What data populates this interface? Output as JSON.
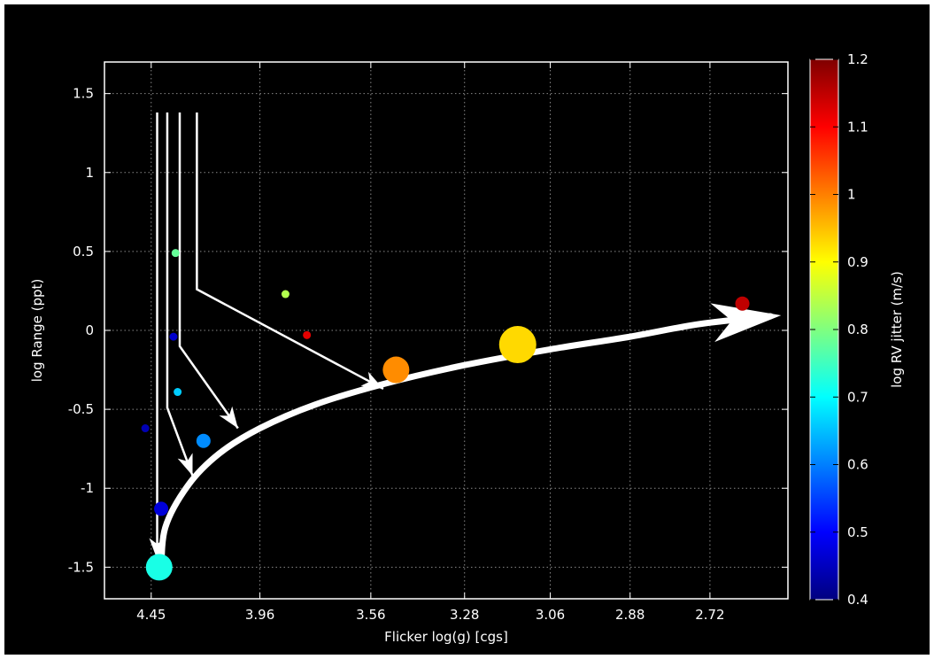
{
  "chart_data": {
    "type": "scatter",
    "xlabel": "Flicker log(g) [cgs]",
    "ylabel": "log Range (ppt)",
    "colorbar_label": "log RV jitter (m/s)",
    "x_axis_scale": "reciprocal log(g), decreasing to the right",
    "x_ticks": [
      4.45,
      3.96,
      3.56,
      3.28,
      3.06,
      2.88,
      2.72
    ],
    "xlim": [
      4.7,
      2.58
    ],
    "ylim": [
      -1.7,
      1.7
    ],
    "y_ticks": [
      -1.5,
      -1,
      -0.5,
      0,
      0.5,
      1,
      1.5
    ],
    "y_tick_labels": [
      "-1.5",
      "-1",
      "-0.5",
      "0",
      "0.5",
      "1",
      "1.5"
    ],
    "colorbar_range": [
      0.4,
      1.2
    ],
    "colorbar_ticks": [
      0.4,
      0.5,
      0.6,
      0.7,
      0.8,
      0.9,
      1.0,
      1.1,
      1.2
    ],
    "colorbar_tick_labels": [
      "0.4",
      "0.5",
      "0.6",
      "0.7",
      "0.8",
      "0.9",
      "1",
      "1.1",
      "1.2"
    ],
    "grid": true,
    "background": "#000000",
    "points": [
      {
        "x": 4.48,
        "y": -0.62,
        "jitter": 0.44,
        "size": "small"
      },
      {
        "x": 4.4,
        "y": -1.13,
        "jitter": 0.47,
        "size": "medium"
      },
      {
        "x": 4.41,
        "y": -1.5,
        "jitter": 0.72,
        "size": "large"
      },
      {
        "x": 4.34,
        "y": -0.04,
        "jitter": 0.46,
        "size": "small"
      },
      {
        "x": 4.33,
        "y": 0.49,
        "jitter": 0.78,
        "size": "small"
      },
      {
        "x": 4.32,
        "y": -0.39,
        "jitter": 0.66,
        "size": "small"
      },
      {
        "x": 4.2,
        "y": -0.7,
        "jitter": 0.61,
        "size": "medium"
      },
      {
        "x": 3.86,
        "y": 0.23,
        "jitter": 0.84,
        "size": "small"
      },
      {
        "x": 3.78,
        "y": -0.03,
        "jitter": 1.12,
        "size": "small"
      },
      {
        "x": 3.48,
        "y": -0.25,
        "jitter": 0.99,
        "size": "large"
      },
      {
        "x": 3.14,
        "y": -0.09,
        "jitter": 0.93,
        "size": "xlarge"
      },
      {
        "x": 2.66,
        "y": 0.17,
        "jitter": 1.15,
        "size": "medium"
      }
    ],
    "annotations": [
      {
        "type": "arrow",
        "points": [
          [
            4.42,
            1.38
          ],
          [
            4.42,
            -1.45
          ]
        ]
      },
      {
        "type": "arrow",
        "points": [
          [
            4.37,
            1.38
          ],
          [
            4.37,
            -0.49
          ],
          [
            4.25,
            -0.92
          ]
        ]
      },
      {
        "type": "arrow",
        "points": [
          [
            4.31,
            1.38
          ],
          [
            4.31,
            -0.1
          ],
          [
            4.05,
            -0.62
          ]
        ]
      },
      {
        "type": "arrow",
        "points": [
          [
            4.23,
            1.38
          ],
          [
            4.23,
            0.26
          ],
          [
            3.52,
            -0.37
          ]
        ]
      },
      {
        "type": "curve-arrow",
        "points": [
          [
            4.4,
            -1.55
          ],
          [
            4.38,
            -1.25
          ],
          [
            4.27,
            -0.98
          ],
          [
            4.13,
            -0.78
          ],
          [
            3.96,
            -0.62
          ],
          [
            3.75,
            -0.47
          ],
          [
            3.52,
            -0.34
          ],
          [
            3.28,
            -0.22
          ],
          [
            3.06,
            -0.12
          ],
          [
            2.88,
            -0.04
          ],
          [
            2.74,
            0.04
          ],
          [
            2.61,
            0.09
          ]
        ]
      }
    ]
  }
}
